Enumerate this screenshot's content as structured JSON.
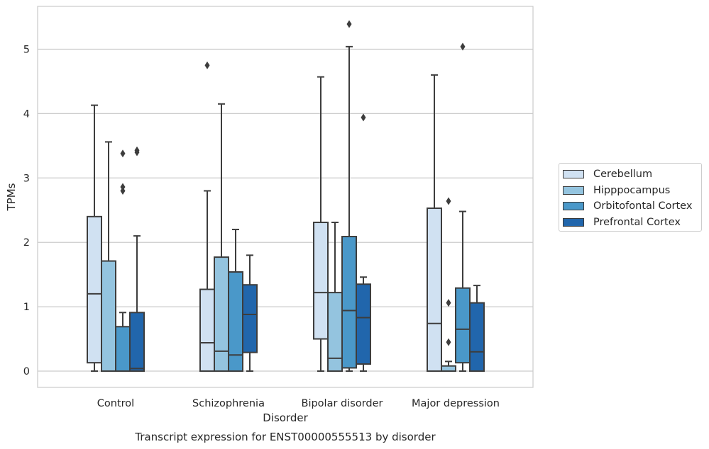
{
  "chart_data": {
    "type": "box",
    "title": "Transcript expression for ENST00000555513 by disorder",
    "xlabel": "Disorder",
    "ylabel": "TPMs",
    "ylim": [
      -0.26,
      5.67
    ],
    "yticks": [
      0,
      1,
      2,
      3,
      4,
      5
    ],
    "grid": "horizontal",
    "legend_placement": "right",
    "categories": [
      "Control",
      "Schizophrenia",
      "Bipolar disorder",
      "Major depression"
    ],
    "series": [
      {
        "name": "Cerebellum",
        "color": "#d0e1f2",
        "boxes": [
          {
            "whislo": 0,
            "q1": 0.13,
            "med": 1.2,
            "q3": 2.4,
            "whishi": 4.13,
            "fliers": []
          },
          {
            "whislo": 0,
            "q1": 0,
            "med": 0.44,
            "q3": 1.27,
            "whishi": 2.8,
            "fliers": [
              4.75
            ]
          },
          {
            "whislo": 0,
            "q1": 0.5,
            "med": 1.22,
            "q3": 2.31,
            "whishi": 4.57,
            "fliers": []
          },
          {
            "whislo": 0,
            "q1": 0,
            "med": 0.74,
            "q3": 2.53,
            "whishi": 4.6,
            "fliers": []
          }
        ]
      },
      {
        "name": "Hipppocampus",
        "color": "#94c4df",
        "boxes": [
          {
            "whislo": 0,
            "q1": 0,
            "med": 0,
            "q3": 1.71,
            "whishi": 3.56,
            "fliers": []
          },
          {
            "whislo": 0,
            "q1": 0,
            "med": 0.31,
            "q3": 1.77,
            "whishi": 4.15,
            "fliers": []
          },
          {
            "whislo": 0,
            "q1": 0,
            "med": 0.2,
            "q3": 1.22,
            "whishi": 2.31,
            "fliers": []
          },
          {
            "whislo": 0,
            "q1": 0,
            "med": 0,
            "q3": 0.08,
            "whishi": 0.15,
            "fliers": [
              0.45,
              1.06,
              2.64
            ]
          }
        ]
      },
      {
        "name": "Orbitofontal Cortex",
        "color": "#4a98c9",
        "boxes": [
          {
            "whislo": 0,
            "q1": 0,
            "med": 0,
            "q3": 0.69,
            "whishi": 0.91,
            "fliers": [
              2.8,
              2.86,
              3.38
            ]
          },
          {
            "whislo": 0,
            "q1": 0,
            "med": 0.25,
            "q3": 1.54,
            "whishi": 2.2,
            "fliers": []
          },
          {
            "whislo": 0,
            "q1": 0.05,
            "med": 0.94,
            "q3": 2.09,
            "whishi": 5.04,
            "fliers": [
              5.39
            ]
          },
          {
            "whislo": 0,
            "q1": 0.13,
            "med": 0.65,
            "q3": 1.29,
            "whishi": 2.48,
            "fliers": [
              5.04
            ]
          }
        ]
      },
      {
        "name": "Prefrontal Cortex",
        "color": "#2166ac",
        "boxes": [
          {
            "whislo": 0,
            "q1": 0,
            "med": 0.04,
            "q3": 0.91,
            "whishi": 2.1,
            "fliers": [
              3.4,
              3.43
            ]
          },
          {
            "whislo": 0,
            "q1": 0.29,
            "med": 0.88,
            "q3": 1.34,
            "whishi": 1.8,
            "fliers": []
          },
          {
            "whislo": 0,
            "q1": 0.11,
            "med": 0.83,
            "q3": 1.35,
            "whishi": 1.46,
            "fliers": [
              3.94
            ]
          },
          {
            "whislo": 0,
            "q1": 0,
            "med": 0.3,
            "q3": 1.06,
            "whishi": 1.33,
            "fliers": []
          }
        ]
      }
    ]
  }
}
